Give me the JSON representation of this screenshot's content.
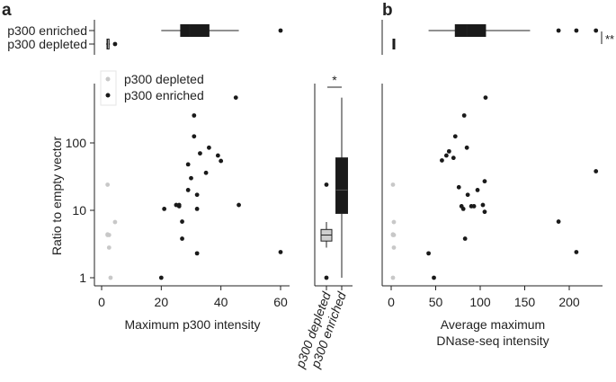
{
  "panel_labels": [
    "a",
    "b"
  ],
  "legend": {
    "depleted": "p300 depleted",
    "enriched": "p300 enriched"
  },
  "colors": {
    "depleted": "#c8c8c8",
    "enriched": "#1a1a1a",
    "axis": "#222222"
  },
  "significance": {
    "boxplot": "*",
    "panel_b": "**"
  },
  "chart_data": [
    {
      "type": "scatter",
      "title": "",
      "xlabel": "Maximum p300 intensity",
      "ylabel": "Ratio to empty vector",
      "xlim": [
        -1,
        62
      ],
      "ylim": [
        0.85,
        600
      ],
      "yscale": "log",
      "xticks": [
        "0",
        "20",
        "40",
        "60"
      ],
      "yticks": [
        "1",
        "10",
        "100"
      ],
      "series": [
        {
          "name": "p300 depleted",
          "x": [
            2,
            2,
            2.5,
            2,
            2.5,
            3,
            4.5
          ],
          "y": [
            24,
            4.4,
            4.3,
            4.3,
            2.8,
            1.0,
            6.7
          ]
        },
        {
          "name": "p300 enriched",
          "x": [
            20,
            21,
            25,
            26,
            26,
            27,
            27,
            29,
            29,
            30,
            31,
            31,
            32,
            32,
            32,
            33,
            35,
            36,
            39,
            40,
            45,
            46,
            60
          ],
          "y": [
            1.0,
            10.5,
            12,
            12,
            11.5,
            6.8,
            3.8,
            48,
            20,
            30,
            125,
            255,
            17,
            10.5,
            2.3,
            70,
            36,
            85,
            65,
            54,
            470,
            12,
            2.4
          ]
        }
      ],
      "marginal_box": {
        "categories": [
          "p300 enriched",
          "p300 depleted"
        ],
        "boxes": [
          {
            "whisker_low": 20,
            "q1": 26.5,
            "median": 29.5,
            "q3": 36,
            "whisker_high": 46,
            "outliers": [
              60
            ]
          },
          {
            "whisker_low": 1.5,
            "q1": 1.8,
            "median": 2,
            "q3": 2.5,
            "whisker_high": 2.8,
            "outliers": [
              4.5
            ]
          }
        ]
      }
    },
    {
      "type": "box",
      "title": "",
      "yscale": "log",
      "categories": [
        "p300 depleted",
        "p300 enriched"
      ],
      "boxes": [
        {
          "whisker_low": 2.8,
          "q1": 3.5,
          "median": 4.3,
          "q3": 5.2,
          "whisker_high": 6.7,
          "outliers": [
            24,
            1.0
          ]
        },
        {
          "whisker_low": 1.0,
          "q1": 9,
          "median": 20,
          "q3": 60,
          "whisker_high": 470,
          "outliers": []
        }
      ]
    },
    {
      "type": "scatter",
      "title": "",
      "xlabel": [
        "Average maximum",
        "DNase-seq intensity"
      ],
      "ylabel": "",
      "xlim": [
        -4,
        240
      ],
      "ylim": [
        0.85,
        600
      ],
      "yscale": "log",
      "xticks": [
        "0",
        "50",
        "100",
        "150",
        "200"
      ],
      "series": [
        {
          "name": "p300 depleted",
          "x": [
            2,
            3,
            2,
            3,
            2,
            3,
            2
          ],
          "y": [
            24,
            6.7,
            4.4,
            4.3,
            4.3,
            2.8,
            1.0
          ]
        },
        {
          "name": "p300 enriched",
          "x": [
            42,
            48,
            57,
            62,
            65,
            70,
            72,
            76,
            79,
            81,
            82,
            83,
            85,
            86,
            90,
            93,
            97,
            103,
            105,
            105,
            106,
            188,
            208,
            230
          ],
          "y": [
            2.3,
            1.0,
            55,
            65,
            75,
            60,
            125,
            22,
            11.5,
            10.5,
            255,
            3.8,
            85,
            17,
            11.5,
            11.5,
            20,
            12,
            27,
            9.5,
            470,
            6.8,
            2.4,
            38
          ]
        }
      ],
      "marginal_box": {
        "categories": [
          "p300 enriched",
          "p300 depleted"
        ],
        "boxes": [
          {
            "whisker_low": 42,
            "q1": 72,
            "median": 85,
            "q3": 106,
            "whisker_high": 156,
            "outliers": [
              188,
              208,
              230
            ]
          },
          {
            "whisker_low": 1.5,
            "q1": 2,
            "median": 2.5,
            "q3": 3,
            "whisker_high": 3.5,
            "outliers": []
          }
        ]
      }
    }
  ]
}
